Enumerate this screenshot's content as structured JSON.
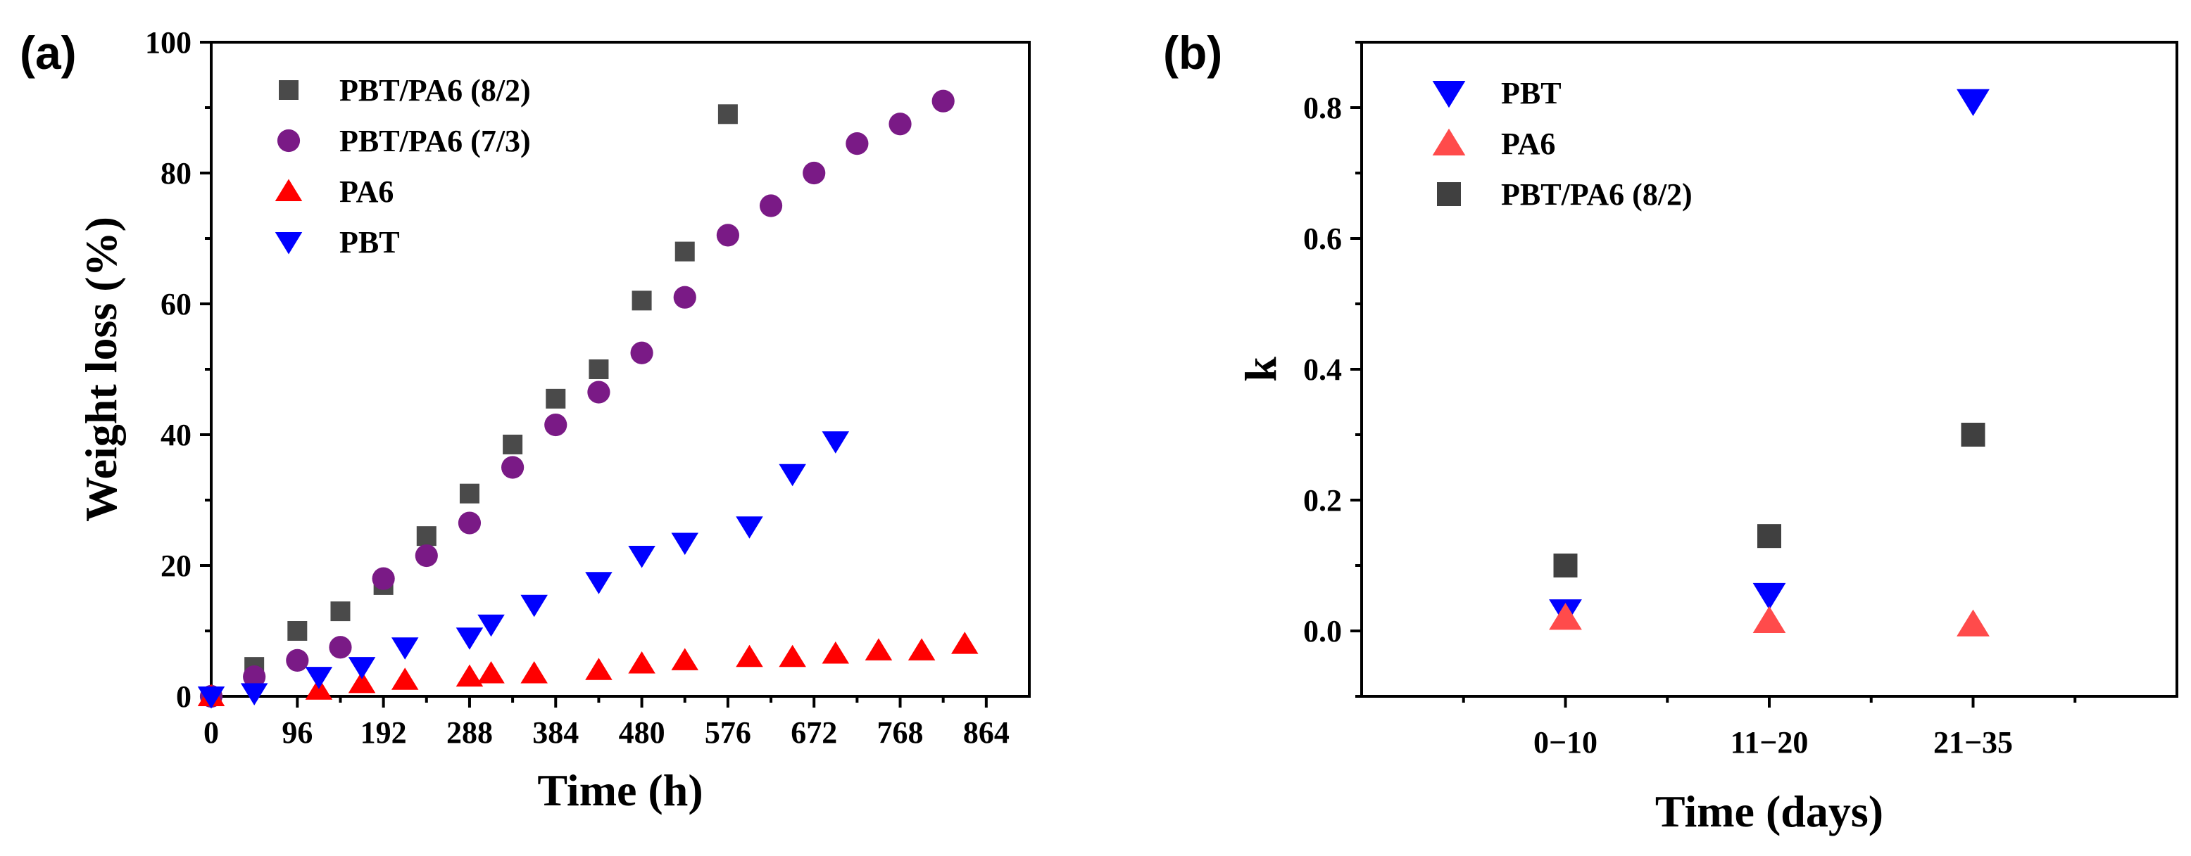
{
  "panels": [
    {
      "id": "a",
      "label": "(a)",
      "chart_data": {
        "type": "scatter",
        "title": "",
        "xlabel": "Time (h)",
        "ylabel": "Weight loss (%)",
        "xlim": [
          0,
          912
        ],
        "ylim": [
          0,
          100
        ],
        "xticks": [
          0,
          96,
          192,
          288,
          384,
          480,
          576,
          672,
          768,
          864
        ],
        "yticks": [
          0,
          20,
          40,
          60,
          80,
          100
        ],
        "legend_position": "top-left",
        "series": [
          {
            "name": "PBT/PA6 (8/2)",
            "marker": "square",
            "color": "#4a4a4a",
            "points": [
              [
                0,
                0
              ],
              [
                48,
                4.5
              ],
              [
                96,
                10
              ],
              [
                144,
                13
              ],
              [
                192,
                17
              ],
              [
                240,
                24.5
              ],
              [
                288,
                31
              ],
              [
                336,
                38.5
              ],
              [
                384,
                45.5
              ],
              [
                432,
                50
              ],
              [
                480,
                60.5
              ],
              [
                528,
                68
              ],
              [
                576,
                89
              ]
            ]
          },
          {
            "name": "PBT/PA6 (7/3)",
            "marker": "circle",
            "color": "#7a1a86",
            "points": [
              [
                0,
                0
              ],
              [
                48,
                3
              ],
              [
                96,
                5.5
              ],
              [
                144,
                7.5
              ],
              [
                192,
                18
              ],
              [
                240,
                21.5
              ],
              [
                288,
                26.5
              ],
              [
                336,
                35
              ],
              [
                384,
                41.5
              ],
              [
                432,
                46.5
              ],
              [
                480,
                52.5
              ],
              [
                528,
                61
              ],
              [
                576,
                70.5
              ],
              [
                624,
                75
              ],
              [
                672,
                80
              ],
              [
                720,
                84.5
              ],
              [
                768,
                87.5
              ],
              [
                816,
                91
              ]
            ]
          },
          {
            "name": "PA6",
            "marker": "triangle-up",
            "color": "#ff0000",
            "points": [
              [
                0,
                0
              ],
              [
                120,
                1
              ],
              [
                168,
                2
              ],
              [
                216,
                2.5
              ],
              [
                288,
                3
              ],
              [
                312,
                3.5
              ],
              [
                360,
                3.5
              ],
              [
                432,
                4
              ],
              [
                480,
                5
              ],
              [
                528,
                5.5
              ],
              [
                600,
                6
              ],
              [
                648,
                6
              ],
              [
                696,
                6.5
              ],
              [
                744,
                7
              ],
              [
                792,
                7
              ],
              [
                840,
                8
              ]
            ]
          },
          {
            "name": "PBT",
            "marker": "triangle-down",
            "color": "#0000ff",
            "points": [
              [
                0,
                0
              ],
              [
                48,
                0.5
              ],
              [
                120,
                3
              ],
              [
                168,
                4.5
              ],
              [
                216,
                7.5
              ],
              [
                288,
                9
              ],
              [
                312,
                11
              ],
              [
                360,
                14
              ],
              [
                432,
                17.5
              ],
              [
                480,
                21.5
              ],
              [
                528,
                23.5
              ],
              [
                600,
                26
              ],
              [
                648,
                34
              ],
              [
                696,
                39
              ]
            ]
          }
        ]
      }
    },
    {
      "id": "b",
      "label": "(b)",
      "chart_data": {
        "type": "scatter",
        "title": "",
        "xlabel": "Time (days)",
        "ylabel": "k",
        "categories": [
          "0−10",
          "11−20",
          "21−35"
        ],
        "ylim": [
          -0.1,
          0.9
        ],
        "yticks": [
          0.0,
          0.2,
          0.4,
          0.6,
          0.8
        ],
        "ytick_labels": [
          "0.0",
          "0.2",
          "0.4",
          "0.6",
          "0.8"
        ],
        "legend_position": "top-left",
        "series": [
          {
            "name": "PBT",
            "marker": "triangle-down",
            "color": "#0000ff",
            "values": [
              0.03,
              0.055,
              0.81
            ]
          },
          {
            "name": "PA6",
            "marker": "triangle-up",
            "color": "#ff4b4b",
            "values": [
              0.02,
              0.015,
              0.01
            ]
          },
          {
            "name": "PBT/PA6 (8/2)",
            "marker": "square",
            "color": "#404040",
            "values": [
              0.1,
              0.145,
              0.3
            ]
          }
        ]
      }
    }
  ]
}
